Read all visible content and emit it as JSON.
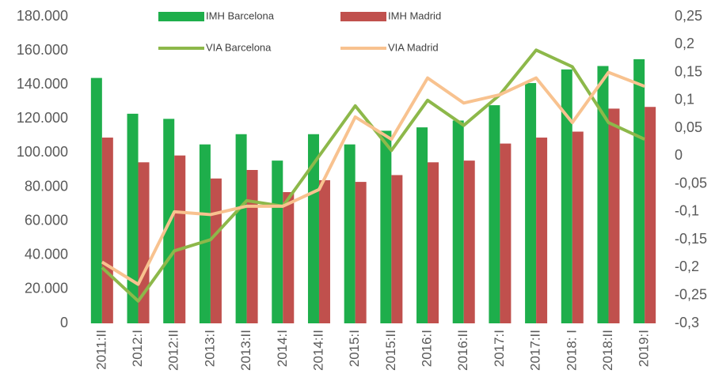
{
  "chart_data": {
    "type": "bar",
    "categories": [
      "2011:II",
      "2012:I",
      "2012:II",
      "2013:I",
      "2013:II",
      "2014:I",
      "2014:II",
      "2015:I",
      "2015:II",
      "2016:I",
      "2016:II",
      "2017:I",
      "2017:II",
      "2018: I",
      "2018:II",
      "2019:I"
    ],
    "series": [
      {
        "name": "IMH Barcelona",
        "type": "bar",
        "color": "#1eae4b",
        "values": [
          144000,
          123000,
          120000,
          105000,
          111000,
          95500,
          111000,
          105000,
          113000,
          115000,
          119000,
          128000,
          141000,
          149000,
          151000,
          155000
        ]
      },
      {
        "name": "IMH Madrid",
        "type": "bar",
        "color": "#c0504d",
        "values": [
          109000,
          94500,
          98500,
          85000,
          90000,
          77000,
          84000,
          83000,
          87000,
          94500,
          95500,
          105500,
          109000,
          112500,
          126000,
          127000
        ]
      },
      {
        "name": "VIA Barcelona",
        "type": "line",
        "axis": "y2",
        "color": "#8db84a",
        "values": [
          -0.2,
          -0.26,
          -0.17,
          -0.15,
          -0.08,
          -0.09,
          0,
          0.09,
          0.01,
          0.1,
          0.055,
          0.11,
          0.19,
          0.16,
          0.06,
          0.03
        ]
      },
      {
        "name": "VIA Madrid",
        "type": "line",
        "axis": "y2",
        "color": "#f8c28f",
        "values": [
          -0.19,
          -0.23,
          -0.1,
          -0.105,
          -0.09,
          -0.09,
          -0.06,
          0.07,
          0.03,
          0.14,
          0.095,
          0.11,
          0.14,
          0.06,
          0.15,
          0.125
        ]
      }
    ],
    "ylim": [
      0,
      180000
    ],
    "yticks": [
      0,
      {
        "value": 20000,
        "label": "20.000"
      },
      {
        "value": 40000,
        "label": "40.000"
      },
      {
        "value": 60000,
        "label": "60.000"
      },
      {
        "value": 80000,
        "label": "80.000"
      },
      {
        "value": 100000,
        "label": "100.000"
      },
      {
        "value": 120000,
        "label": "120.000"
      },
      {
        "value": 140000,
        "label": "140.000"
      },
      {
        "value": 160000,
        "label": "160.000"
      },
      {
        "value": 180000,
        "label": "180.000"
      }
    ],
    "y2lim": [
      -0.3,
      0.25
    ],
    "y2ticks": [
      {
        "value": -0.3,
        "label": "-0,3"
      },
      {
        "value": -0.25,
        "label": "-0,25"
      },
      {
        "value": -0.2,
        "label": "-0,2"
      },
      {
        "value": -0.15,
        "label": "-0,15"
      },
      {
        "value": -0.1,
        "label": "-0,1"
      },
      {
        "value": -0.05,
        "label": "-0,05"
      },
      0,
      {
        "value": 0.05,
        "label": "0,05"
      },
      {
        "value": 0.1,
        "label": "0,1"
      },
      {
        "value": 0.15,
        "label": "0,15"
      },
      {
        "value": 0.2,
        "label": "0,2"
      },
      {
        "value": 0.25,
        "label": "0,25"
      }
    ],
    "grid": false,
    "legend": "top"
  }
}
